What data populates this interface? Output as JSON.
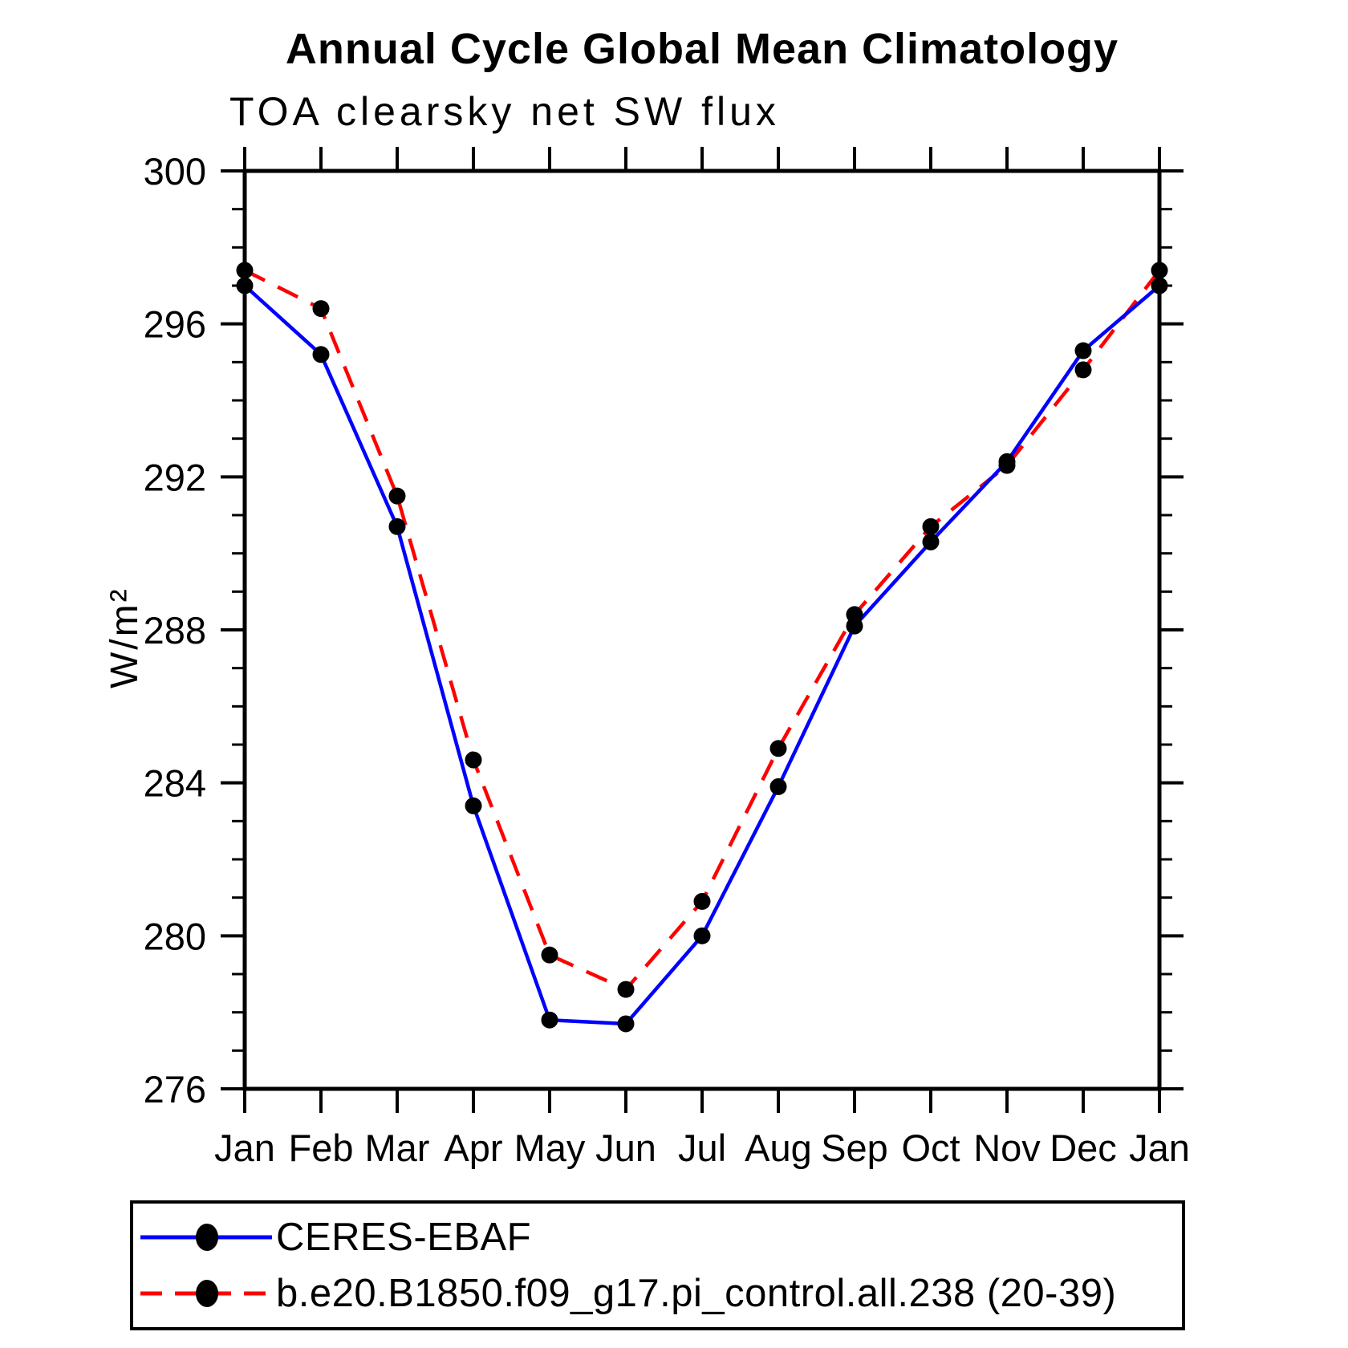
{
  "page": {
    "background": "#ffffff"
  },
  "chart_data": {
    "type": "line",
    "title": "Annual Cycle Global Mean Climatology",
    "subtitle": "TOA clearsky net SW flux",
    "ylabel": "W/m²",
    "xlabel": "",
    "x_tick_labels": [
      "Jan",
      "Feb",
      "Mar",
      "Apr",
      "May",
      "Jun",
      "Jul",
      "Aug",
      "Sep",
      "Oct",
      "Nov",
      "Dec",
      "Jan"
    ],
    "ylim": [
      276,
      300
    ],
    "y_major_ticks": [
      276,
      280,
      284,
      288,
      292,
      296,
      300
    ],
    "y_minor_step": 1,
    "grid": false,
    "legend_position": "bottom-left-box",
    "series": [
      {
        "name": "CERES-EBAF",
        "line_color": "#0000ff",
        "line_style": "solid",
        "marker": "filled-circle",
        "marker_color": "#000000",
        "values": [
          297.0,
          295.2,
          290.7,
          283.4,
          277.8,
          277.7,
          280.0,
          283.9,
          288.1,
          290.3,
          292.4,
          295.3,
          297.0
        ]
      },
      {
        "name": "b.e20.B1850.f09_g17.pi_control.all.238 (20-39)",
        "line_color": "#ff0000",
        "line_style": "dashed",
        "marker": "filled-circle",
        "marker_color": "#000000",
        "values": [
          297.4,
          296.4,
          291.5,
          284.6,
          279.5,
          278.6,
          280.9,
          284.9,
          288.4,
          290.7,
          292.3,
          294.8,
          297.4
        ]
      }
    ]
  }
}
